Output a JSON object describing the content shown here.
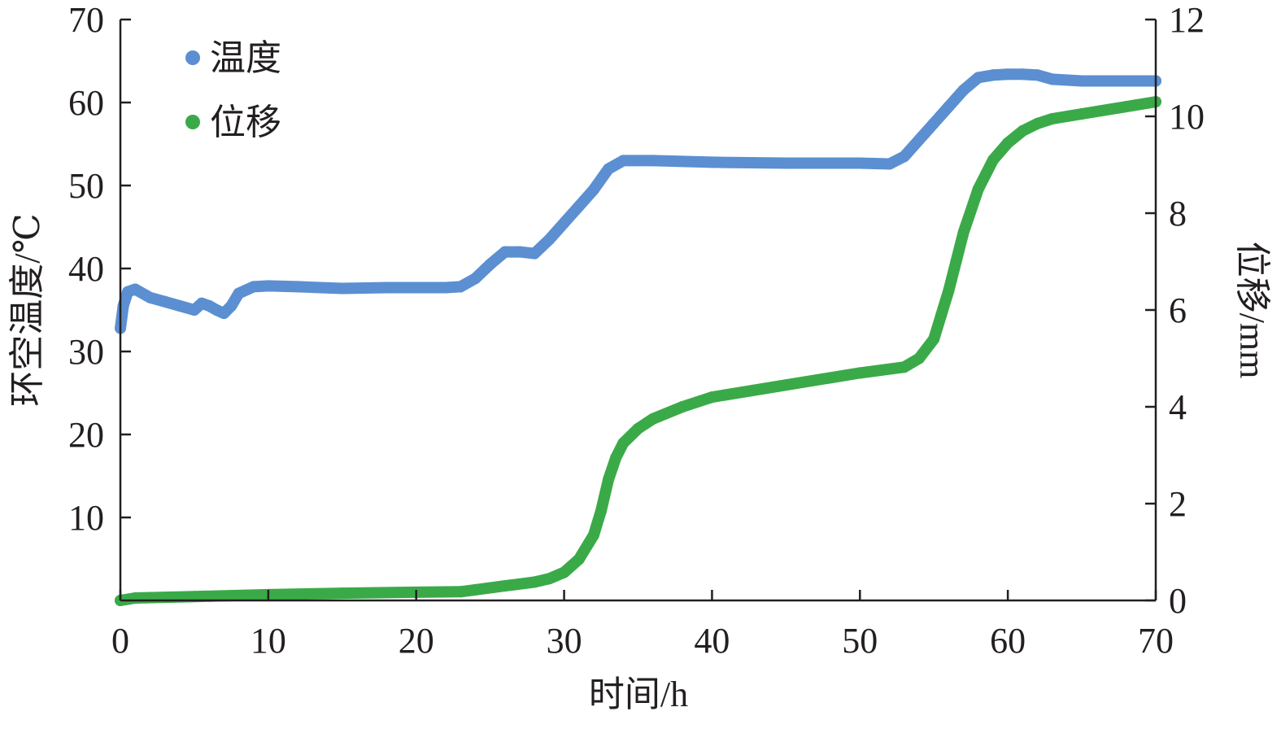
{
  "chart_data": {
    "type": "line",
    "x_axis": {
      "label": "时间/h",
      "min": 0,
      "max": 70,
      "ticks": [
        0,
        10,
        20,
        30,
        40,
        50,
        60,
        70
      ],
      "tick_labels": [
        "0",
        "10",
        "20",
        "30",
        "40",
        "50",
        "60",
        "70"
      ]
    },
    "y_axis_left": {
      "label": "环空温度/℃",
      "min": 0,
      "max": 70,
      "ticks": [
        10,
        20,
        30,
        40,
        50,
        60,
        70
      ],
      "tick_labels": [
        "10",
        "20",
        "30",
        "40",
        "50",
        "60",
        "70"
      ]
    },
    "y_axis_right": {
      "label": "位移/mm",
      "min": 0,
      "max": 12,
      "ticks": [
        0,
        2,
        4,
        6,
        8,
        10,
        12
      ],
      "tick_labels": [
        "0",
        "2",
        "4",
        "6",
        "8",
        "10",
        "12"
      ]
    },
    "grid": false,
    "legend_position": "top-left",
    "series": [
      {
        "name": "温度",
        "axis": "left",
        "color": "#5b8fd1",
        "x": [
          0,
          0.2,
          0.5,
          1,
          2,
          3,
          4,
          5,
          5.5,
          6,
          6.5,
          7,
          7.5,
          8,
          9,
          10,
          12,
          15,
          18,
          20,
          22,
          23,
          24,
          25,
          26,
          27,
          28,
          29,
          30,
          31,
          32,
          33,
          34,
          36,
          40,
          45,
          50,
          52,
          53,
          54,
          55,
          56,
          57,
          58,
          59,
          60,
          61,
          62,
          63,
          65,
          70
        ],
        "y": [
          32.8,
          35.5,
          37.2,
          37.5,
          36.5,
          36.0,
          35.5,
          35.0,
          35.8,
          35.5,
          35.0,
          34.6,
          35.5,
          37.0,
          37.8,
          37.9,
          37.8,
          37.6,
          37.7,
          37.7,
          37.7,
          37.8,
          38.8,
          40.5,
          42.0,
          42.0,
          41.8,
          43.5,
          45.5,
          47.5,
          49.5,
          52.0,
          53.0,
          53.0,
          52.8,
          52.7,
          52.7,
          52.6,
          53.5,
          55.5,
          57.5,
          59.5,
          61.5,
          63.0,
          63.3,
          63.4,
          63.4,
          63.3,
          62.8,
          62.6,
          62.6
        ]
      },
      {
        "name": "位移",
        "axis": "right",
        "color": "#3aaa48",
        "x": [
          0,
          1,
          5,
          10,
          15,
          20,
          23,
          24,
          26,
          28,
          29,
          30,
          31,
          32,
          32.5,
          33,
          33.5,
          34,
          35,
          36,
          38,
          40,
          45,
          50,
          53,
          54,
          55,
          55.5,
          56,
          56.5,
          57,
          58,
          59,
          60,
          61,
          62,
          63,
          65,
          68,
          70
        ],
        "y": [
          0.0,
          0.05,
          0.08,
          0.12,
          0.15,
          0.17,
          0.18,
          0.22,
          0.3,
          0.38,
          0.45,
          0.58,
          0.85,
          1.35,
          1.85,
          2.5,
          2.95,
          3.25,
          3.55,
          3.75,
          4.0,
          4.2,
          4.45,
          4.7,
          4.82,
          5.0,
          5.4,
          5.9,
          6.4,
          7.0,
          7.6,
          8.5,
          9.1,
          9.45,
          9.7,
          9.85,
          9.95,
          10.05,
          10.2,
          10.3
        ]
      }
    ]
  }
}
